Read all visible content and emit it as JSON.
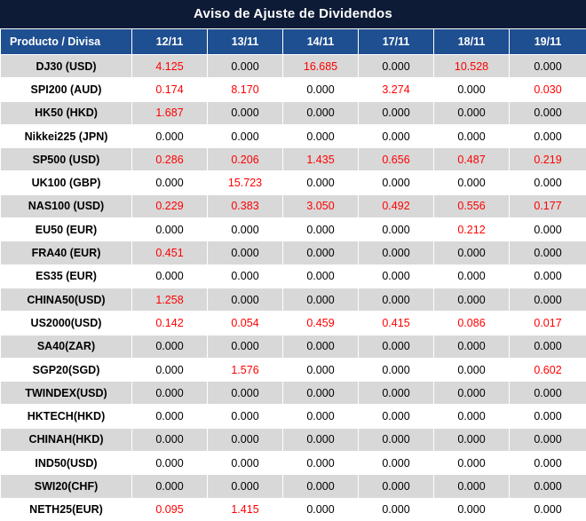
{
  "chart_data": {
    "type": "table",
    "title": "Aviso de Ajuste de Dividendos",
    "columns": [
      "Producto / Divisa",
      "12/11",
      "13/11",
      "14/11",
      "17/11",
      "18/11",
      "19/11"
    ],
    "rows": [
      {
        "product": "DJ30 (USD)",
        "values": [
          "4.125",
          "0.000",
          "16.685",
          "0.000",
          "10.528",
          "0.000"
        ]
      },
      {
        "product": "SPI200 (AUD)",
        "values": [
          "0.174",
          "8.170",
          "0.000",
          "3.274",
          "0.000",
          "0.030"
        ]
      },
      {
        "product": "HK50 (HKD)",
        "values": [
          "1.687",
          "0.000",
          "0.000",
          "0.000",
          "0.000",
          "0.000"
        ]
      },
      {
        "product": "Nikkei225 (JPN)",
        "values": [
          "0.000",
          "0.000",
          "0.000",
          "0.000",
          "0.000",
          "0.000"
        ]
      },
      {
        "product": "SP500 (USD)",
        "values": [
          "0.286",
          "0.206",
          "1.435",
          "0.656",
          "0.487",
          "0.219"
        ]
      },
      {
        "product": "UK100 (GBP)",
        "values": [
          "0.000",
          "15.723",
          "0.000",
          "0.000",
          "0.000",
          "0.000"
        ]
      },
      {
        "product": "NAS100 (USD)",
        "values": [
          "0.229",
          "0.383",
          "3.050",
          "0.492",
          "0.556",
          "0.177"
        ]
      },
      {
        "product": "EU50 (EUR)",
        "values": [
          "0.000",
          "0.000",
          "0.000",
          "0.000",
          "0.212",
          "0.000"
        ]
      },
      {
        "product": "FRA40 (EUR)",
        "values": [
          "0.451",
          "0.000",
          "0.000",
          "0.000",
          "0.000",
          "0.000"
        ]
      },
      {
        "product": "ES35 (EUR)",
        "values": [
          "0.000",
          "0.000",
          "0.000",
          "0.000",
          "0.000",
          "0.000"
        ]
      },
      {
        "product": "CHINA50(USD)",
        "values": [
          "1.258",
          "0.000",
          "0.000",
          "0.000",
          "0.000",
          "0.000"
        ]
      },
      {
        "product": "US2000(USD)",
        "values": [
          "0.142",
          "0.054",
          "0.459",
          "0.415",
          "0.086",
          "0.017"
        ]
      },
      {
        "product": "SA40(ZAR)",
        "values": [
          "0.000",
          "0.000",
          "0.000",
          "0.000",
          "0.000",
          "0.000"
        ]
      },
      {
        "product": "SGP20(SGD)",
        "values": [
          "0.000",
          "1.576",
          "0.000",
          "0.000",
          "0.000",
          "0.602"
        ]
      },
      {
        "product": "TWINDEX(USD)",
        "values": [
          "0.000",
          "0.000",
          "0.000",
          "0.000",
          "0.000",
          "0.000"
        ]
      },
      {
        "product": "HKTECH(HKD)",
        "values": [
          "0.000",
          "0.000",
          "0.000",
          "0.000",
          "0.000",
          "0.000"
        ]
      },
      {
        "product": "CHINAH(HKD)",
        "values": [
          "0.000",
          "0.000",
          "0.000",
          "0.000",
          "0.000",
          "0.000"
        ]
      },
      {
        "product": "IND50(USD)",
        "values": [
          "0.000",
          "0.000",
          "0.000",
          "0.000",
          "0.000",
          "0.000"
        ]
      },
      {
        "product": "SWI20(CHF)",
        "values": [
          "0.000",
          "0.000",
          "0.000",
          "0.000",
          "0.000",
          "0.000"
        ]
      },
      {
        "product": "NETH25(EUR)",
        "values": [
          "0.095",
          "1.415",
          "0.000",
          "0.000",
          "0.000",
          "0.000"
        ]
      }
    ],
    "colors": {
      "title_bg": "#0d1b36",
      "header_bg": "#1e4f91",
      "stripe_gray": "#d8d8d8",
      "nonzero_red": "#fe0000"
    }
  }
}
